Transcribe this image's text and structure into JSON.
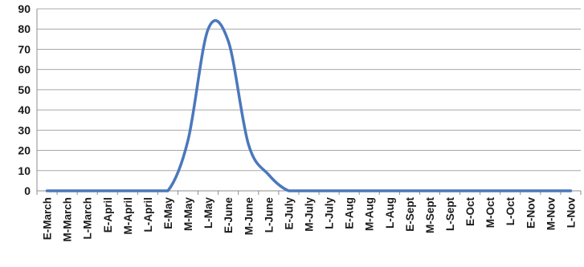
{
  "chart_data": {
    "type": "line",
    "title": "",
    "xlabel": "",
    "ylabel": "",
    "ylim": [
      0,
      90
    ],
    "yticks": [
      "0",
      "10",
      "20",
      "30",
      "40",
      "50",
      "60",
      "70",
      "80",
      "90"
    ],
    "grid": true,
    "legend": "none",
    "categories": [
      "E-March",
      "M-March",
      "L-March",
      "E-April",
      "M-April",
      "L-April",
      "E-May",
      "M-May",
      "L-May",
      "E-June",
      "M-June",
      "L-June",
      "E-July",
      "M-July",
      "L-July",
      "E-Aug",
      "M-Aug",
      "L-Aug",
      "E-Sept",
      "M-Sept",
      "L-Sept",
      "E-Oct",
      "M-Oct",
      "L-Oct",
      "E-Nov",
      "M-Nov",
      "L-Nov"
    ],
    "series": [
      {
        "color": "#4a78bc",
        "values": [
          0,
          0,
          0,
          0,
          0,
          0,
          0,
          25,
          80,
          74,
          23,
          8,
          0,
          0,
          0,
          0,
          0,
          0,
          0,
          0,
          0,
          0,
          0,
          0,
          0,
          0,
          0
        ]
      }
    ]
  }
}
